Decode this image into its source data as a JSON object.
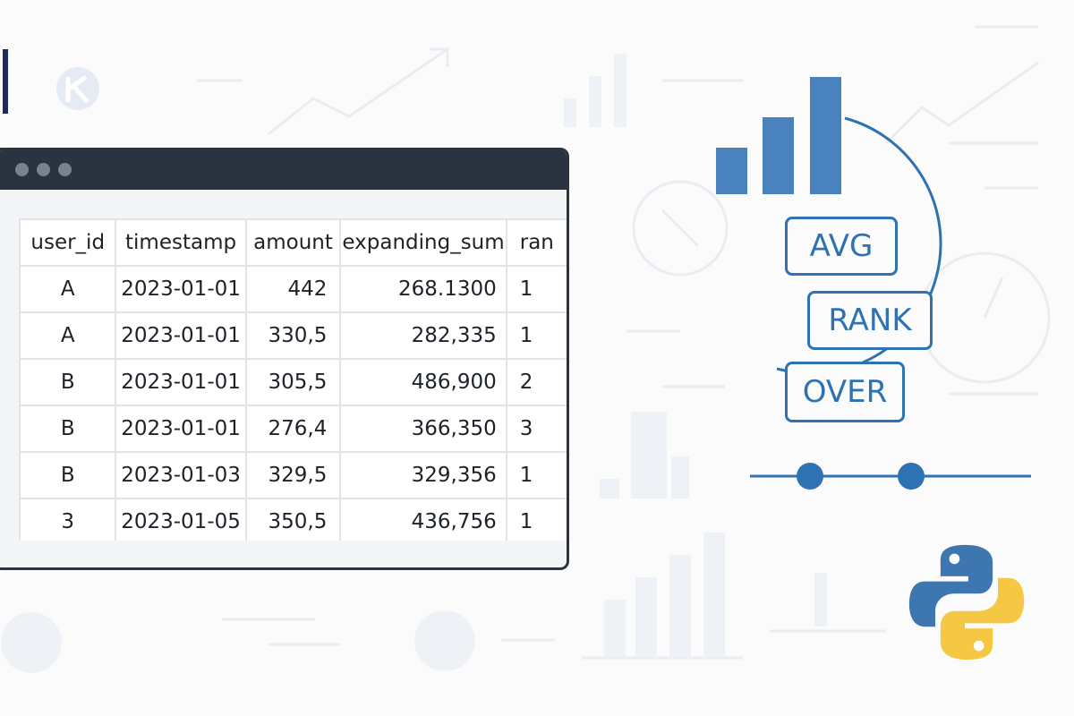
{
  "table": {
    "columns": [
      "user_id",
      "timestamp",
      "amount",
      "expanding_sum",
      "ran"
    ],
    "rows": [
      {
        "user_id": "A",
        "timestamp": "2023-01-01",
        "amount": "442",
        "expanding_sum": "268.1300",
        "rank": "1"
      },
      {
        "user_id": "A",
        "timestamp": "2023-01-01",
        "amount": "330,5",
        "expanding_sum": "282,335",
        "rank": "1"
      },
      {
        "user_id": "B",
        "timestamp": "2023-01-01",
        "amount": "305,5",
        "expanding_sum": "486,900",
        "rank": "2"
      },
      {
        "user_id": "B",
        "timestamp": "2023-01-01",
        "amount": "276,4",
        "expanding_sum": "366,350",
        "rank": "3"
      },
      {
        "user_id": "B",
        "timestamp": "2023-01-03",
        "amount": "329,5",
        "expanding_sum": "329,356",
        "rank": "1"
      },
      {
        "user_id": "3",
        "timestamp": "2023-01-05",
        "amount": "350,5",
        "expanding_sum": "436,756",
        "rank": "1"
      }
    ]
  },
  "keywords": {
    "avg": "AVG",
    "rank": "RANK",
    "over": "OVER"
  },
  "icons": {
    "logo": "logo-icon",
    "python": "python-logo-icon",
    "bar_chart": "bar-chart-icon",
    "window_controls": "window-dot-icon"
  },
  "colors": {
    "accent_blue": "#2f72b2",
    "bar_blue": "#4a82bd",
    "window_dark": "#2a3440",
    "python_blue": "#3e77b0",
    "python_yellow": "#f4c842",
    "accent_bar": "#1f2a5a"
  }
}
